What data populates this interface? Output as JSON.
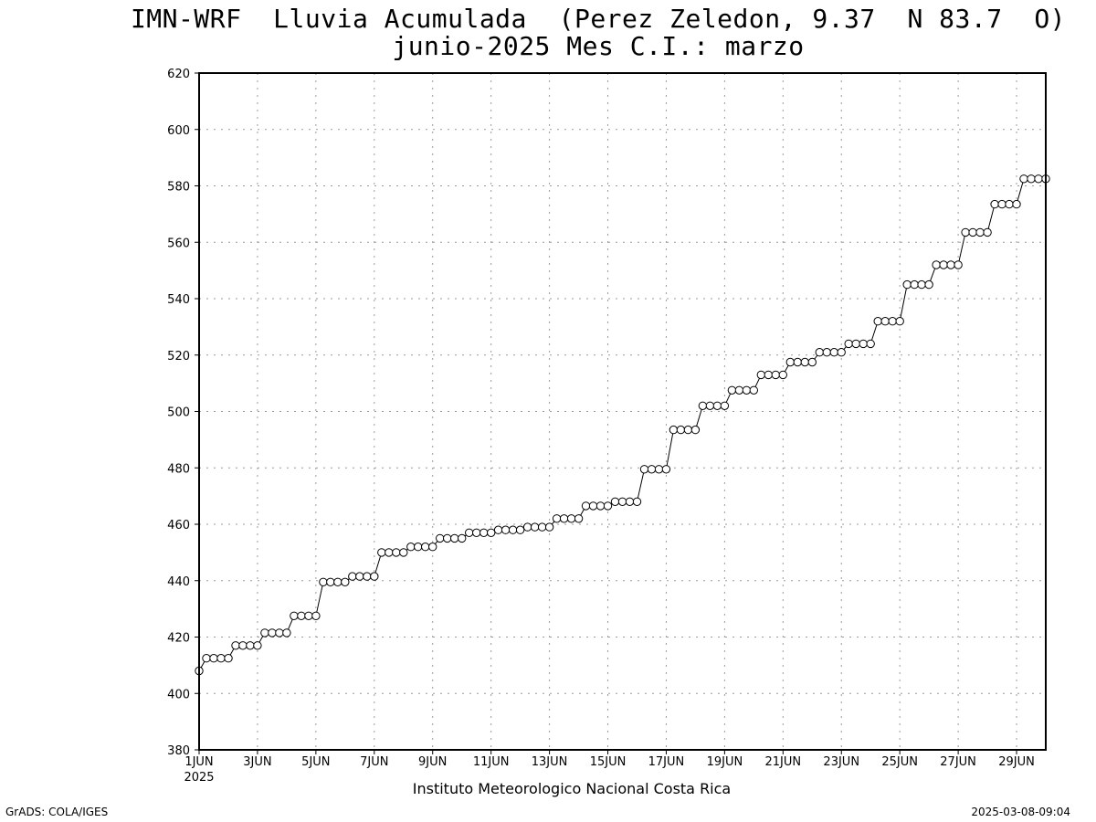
{
  "title_line1": "IMN-WRF  Lluvia Acumulada  (Perez Zeledon, 9.37  N 83.7  O)",
  "title_line2": "junio-2025 Mes C.I.: marzo",
  "credit_left": "GrADS: COLA/IGES",
  "credit_right": "2025-03-08-09:04",
  "chart_data": {
    "type": "line",
    "title": "IMN-WRF  Lluvia Acumulada  (Perez Zeledon, 9.37  N 83.7  O)",
    "subtitle": "junio-2025 Mes C.I.: marzo",
    "xlabel": "Instituto Meteorologico Nacional Costa Rica",
    "ylabel": "",
    "ylim": [
      380,
      620
    ],
    "yticks": [
      380,
      400,
      420,
      440,
      460,
      480,
      500,
      520,
      540,
      560,
      580,
      600,
      620
    ],
    "xlim_days": [
      1,
      30
    ],
    "x_year_label": "2025",
    "xticks": [
      {
        "day": 1,
        "label": "1JUN"
      },
      {
        "day": 3,
        "label": "3JUN"
      },
      {
        "day": 5,
        "label": "5JUN"
      },
      {
        "day": 7,
        "label": "7JUN"
      },
      {
        "day": 9,
        "label": "9JUN"
      },
      {
        "day": 11,
        "label": "11JUN"
      },
      {
        "day": 13,
        "label": "13JUN"
      },
      {
        "day": 15,
        "label": "15JUN"
      },
      {
        "day": 17,
        "label": "17JUN"
      },
      {
        "day": 19,
        "label": "19JUN"
      },
      {
        "day": 21,
        "label": "21JUN"
      },
      {
        "day": 23,
        "label": "23JUN"
      },
      {
        "day": 25,
        "label": "25JUN"
      },
      {
        "day": 27,
        "label": "27JUN"
      },
      {
        "day": 29,
        "label": "29JUN"
      }
    ],
    "grid": true,
    "marker": "open-circle",
    "series": [
      {
        "x_step_days": 0.25,
        "values": [
          408,
          412.5,
          412.5,
          412.5,
          412.5,
          417,
          417,
          417,
          417,
          421.5,
          421.5,
          421.5,
          421.5,
          427.5,
          427.5,
          427.5,
          427.5,
          439.5,
          439.5,
          439.5,
          439.5,
          441.5,
          441.5,
          441.5,
          441.5,
          450,
          450,
          450,
          450,
          452,
          452,
          452,
          452,
          455,
          455,
          455,
          455,
          457,
          457,
          457,
          457,
          458,
          458,
          458,
          458,
          459,
          459,
          459,
          459,
          462,
          462,
          462,
          462,
          466.5,
          466.5,
          466.5,
          466.5,
          468,
          468,
          468,
          468,
          479.5,
          479.5,
          479.5,
          479.5,
          493.5,
          493.5,
          493.5,
          493.5,
          502,
          502,
          502,
          502,
          507.5,
          507.5,
          507.5,
          507.5,
          513,
          513,
          513,
          513,
          517.5,
          517.5,
          517.5,
          517.5,
          521,
          521,
          521,
          521,
          524,
          524,
          524,
          524,
          532,
          532,
          532,
          532,
          545,
          545,
          545,
          545,
          552,
          552,
          552,
          552,
          563.5,
          563.5,
          563.5,
          563.5,
          573.5,
          573.5,
          573.5,
          573.5,
          582.5,
          582.5,
          582.5,
          582.5
        ]
      }
    ]
  }
}
